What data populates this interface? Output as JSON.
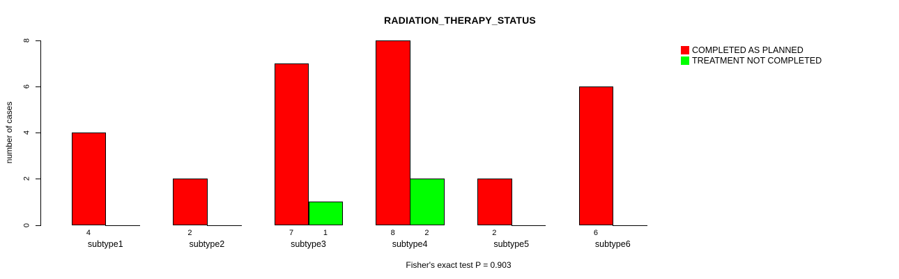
{
  "chart_data": {
    "type": "bar",
    "title": "RADIATION_THERAPY_STATUS",
    "ylabel": "number of cases",
    "xlabel": "",
    "categories": [
      "subtype1",
      "subtype2",
      "subtype3",
      "subtype4",
      "subtype5",
      "subtype6"
    ],
    "series": [
      {
        "name": "COMPLETED AS PLANNED",
        "color": "#ff0000",
        "values": [
          4,
          2,
          7,
          8,
          2,
          6
        ]
      },
      {
        "name": "TREATMENT NOT COMPLETED",
        "color": "#00ff00",
        "values": [
          0,
          0,
          1,
          2,
          0,
          0
        ]
      }
    ],
    "yticks": [
      0,
      2,
      4,
      6,
      8
    ],
    "ylim": [
      0,
      8
    ],
    "grid": false,
    "legend_position": "top-right",
    "value_labels_shown_for_nonzero_bars": true,
    "annotation": "Fisher's exact test P = 0.903"
  }
}
